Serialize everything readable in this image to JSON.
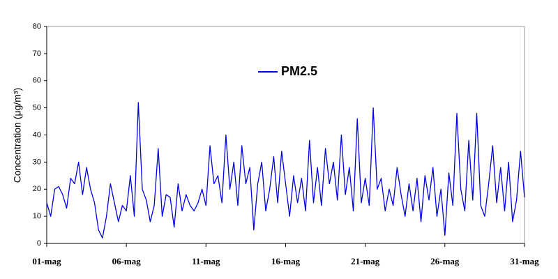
{
  "chart_data": {
    "type": "line",
    "ylabel": "Concentration (μg/m³)",
    "xlim": [
      1,
      31
    ],
    "ylim": [
      0,
      80
    ],
    "yticks": [
      0,
      10,
      20,
      30,
      40,
      50,
      60,
      70,
      80
    ],
    "xticks": [
      {
        "value": 1,
        "label": "01-mag"
      },
      {
        "value": 6,
        "label": "06-mag"
      },
      {
        "value": 11,
        "label": "11-mag"
      },
      {
        "value": 16,
        "label": "16-mag"
      },
      {
        "value": 21,
        "label": "21-mag"
      },
      {
        "value": 26,
        "label": "26-mag"
      },
      {
        "value": 31,
        "label": "31-mag"
      }
    ],
    "grid": false,
    "legend": "top",
    "x": [
      1,
      1.25,
      1.5,
      1.75,
      2,
      2.25,
      2.5,
      2.75,
      3,
      3.25,
      3.5,
      3.75,
      4,
      4.25,
      4.5,
      4.75,
      5,
      5.25,
      5.5,
      5.75,
      6,
      6.25,
      6.5,
      6.75,
      7,
      7.25,
      7.5,
      7.75,
      8,
      8.25,
      8.5,
      8.75,
      9,
      9.25,
      9.5,
      9.75,
      10,
      10.25,
      10.5,
      10.75,
      11,
      11.25,
      11.5,
      11.75,
      12,
      12.25,
      12.5,
      12.75,
      13,
      13.25,
      13.5,
      13.75,
      14,
      14.25,
      14.5,
      14.75,
      15,
      15.25,
      15.5,
      15.75,
      16,
      16.25,
      16.5,
      16.75,
      17,
      17.25,
      17.5,
      17.75,
      18,
      18.25,
      18.5,
      18.75,
      19,
      19.25,
      19.5,
      19.75,
      20,
      20.25,
      20.5,
      20.75,
      21,
      21.25,
      21.5,
      21.75,
      22,
      22.25,
      22.5,
      22.75,
      23,
      23.25,
      23.5,
      23.75,
      24,
      24.25,
      24.5,
      24.75,
      25,
      25.25,
      25.5,
      25.75,
      26,
      26.25,
      26.5,
      26.75,
      27,
      27.25,
      27.5,
      27.75,
      28,
      28.25,
      28.5,
      28.75,
      29,
      29.25,
      29.5,
      29.75,
      30,
      30.25,
      30.5,
      30.75,
      31
    ],
    "series": [
      {
        "name": "PM2.5",
        "color": "#0000e0",
        "values": [
          15,
          10,
          20,
          21,
          18,
          13,
          24,
          22,
          30,
          18,
          28,
          20,
          15,
          5,
          2,
          10,
          22,
          15,
          8,
          14,
          12,
          25,
          10,
          52,
          20,
          16,
          8,
          14,
          35,
          10,
          18,
          17,
          6,
          22,
          12,
          18,
          14,
          12,
          15,
          20,
          14,
          36,
          22,
          25,
          15,
          40,
          20,
          30,
          14,
          36,
          22,
          28,
          5,
          22,
          30,
          12,
          20,
          32,
          15,
          34,
          22,
          10,
          25,
          15,
          24,
          12,
          38,
          15,
          28,
          14,
          35,
          22,
          30,
          16,
          40,
          18,
          28,
          12,
          46,
          15,
          24,
          14,
          50,
          20,
          24,
          12,
          20,
          14,
          28,
          18,
          10,
          22,
          12,
          24,
          8,
          25,
          16,
          28,
          10,
          20,
          3,
          26,
          14,
          48,
          20,
          12,
          38,
          16,
          48,
          14,
          10,
          22,
          36,
          15,
          28,
          12,
          30,
          8,
          16,
          34,
          17
        ]
      }
    ]
  }
}
